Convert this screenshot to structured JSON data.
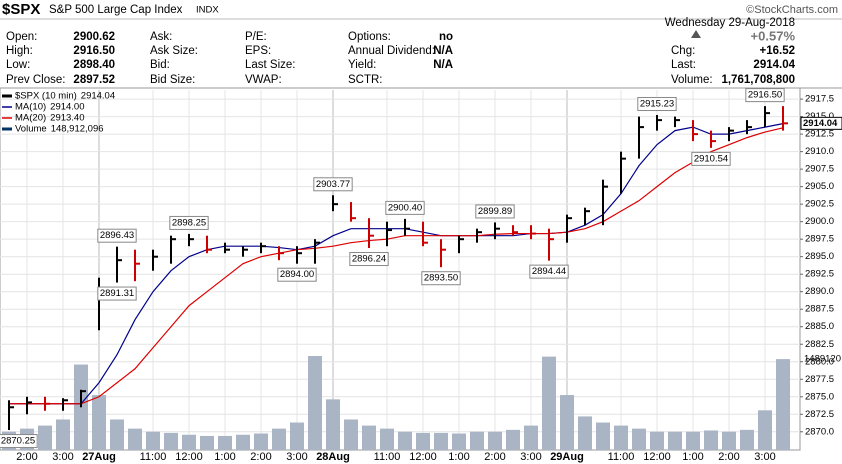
{
  "header": {
    "symbol": "$SPX",
    "name": "S&P 500 Large Cap Index",
    "exchange": "INDX",
    "watermark": "©StockCharts.com",
    "columns": [
      [
        {
          "label": "Open:",
          "value": "2900.62"
        },
        {
          "label": "High:",
          "value": "2916.50"
        },
        {
          "label": "Low:",
          "value": "2898.40"
        },
        {
          "label": "Prev Close:",
          "value": "2897.52"
        }
      ],
      [
        {
          "label": "Ask:"
        },
        {
          "label": "Ask Size:"
        },
        {
          "label": "Bid:"
        },
        {
          "label": "Bid Size:"
        }
      ],
      [
        {
          "label": "P/E:"
        },
        {
          "label": "EPS:"
        },
        {
          "label": "Last Size:"
        },
        {
          "label": "VWAP:"
        }
      ],
      [
        {
          "label": "Options:",
          "value": "no"
        },
        {
          "label": "Annual Dividend:",
          "value": "N/A"
        },
        {
          "label": "Yield:",
          "value": "N/A"
        },
        {
          "label": "SCTR:"
        }
      ]
    ],
    "date": "Wednesday 29-Aug-2018",
    "change_pct": "+0.57%",
    "stats": [
      {
        "label": "Chg:",
        "value": "+16.52"
      },
      {
        "label": "Last:",
        "value": "2914.04"
      },
      {
        "label": "Volume:",
        "value": "1,761,708,800"
      }
    ]
  },
  "chart_data": {
    "type": "hlc",
    "categories": [
      null,
      "2:00",
      null,
      "3:00",
      null,
      "27Aug",
      null,
      null,
      "11:00",
      null,
      "12:00",
      null,
      "1:00",
      null,
      "2:00",
      null,
      "3:00",
      null,
      "28Aug",
      null,
      null,
      "11:00",
      null,
      "12:00",
      null,
      "1:00",
      null,
      "2:00",
      null,
      "3:00",
      null,
      "29Aug",
      null,
      null,
      "11:00",
      null,
      "12:00",
      null,
      "1:00",
      null,
      "2:00",
      null,
      "3:00",
      null
    ],
    "price": {
      "name": "$SPX (10 min)",
      "legend_value": "2914.04",
      "up_color": "#000000",
      "down_color": "#cc0000",
      "high": [
        2874.5,
        2875,
        2875,
        2874.8,
        2876,
        2892,
        2896.43,
        2896,
        2896,
        2898,
        2898.25,
        2898,
        2897,
        2896.5,
        2897,
        2896.5,
        2896.5,
        2897.5,
        2903.77,
        2902.8,
        2900.5,
        2900,
        2900.4,
        2900,
        2897.5,
        2898,
        2899,
        2899.89,
        2899.5,
        2899.5,
        2899,
        2901,
        2902,
        2906,
        2910,
        2915,
        2915.23,
        2915,
        2914.5,
        2913,
        2913.5,
        2914.5,
        2916.5,
        2916.5
      ],
      "low": [
        2870.25,
        2872.5,
        2873,
        2873,
        2873.5,
        2884.5,
        2891.31,
        2891.5,
        2893,
        2894,
        2896.5,
        2895.5,
        2895.5,
        2895,
        2895.5,
        2894.5,
        2894,
        2894,
        2901.5,
        2900,
        2896.24,
        2896.5,
        2898,
        2896.5,
        2893.5,
        2895.5,
        2897,
        2897.5,
        2898,
        2897.5,
        2894.44,
        2897,
        2899.5,
        2899.5,
        2904,
        2909,
        2913,
        2913.5,
        2911.5,
        2910.54,
        2911.5,
        2912.5,
        2913.5,
        2913
      ],
      "close": [
        2873.5,
        2874.2,
        2874,
        2874.5,
        2875.8,
        2890,
        2894.5,
        2894,
        2895,
        2897.5,
        2897.5,
        2896,
        2896,
        2896,
        2896.5,
        2895.5,
        2895.5,
        2897,
        2902.5,
        2900.5,
        2898,
        2898.8,
        2899,
        2897,
        2896,
        2897.5,
        2898.5,
        2899,
        2898.5,
        2898.3,
        2897.5,
        2900.5,
        2901.5,
        2905,
        2909,
        2913.5,
        2914.5,
        2914.5,
        2912.5,
        2911.5,
        2913,
        2913.5,
        2915.5,
        2914.04
      ],
      "high_labels": [
        null,
        null,
        null,
        null,
        null,
        null,
        "2896.43",
        null,
        null,
        null,
        "2898.25",
        null,
        null,
        null,
        null,
        null,
        null,
        null,
        "2903.77",
        null,
        null,
        null,
        "2900.40",
        null,
        null,
        null,
        null,
        "2899.89",
        null,
        null,
        null,
        null,
        null,
        null,
        null,
        null,
        "2915.23",
        null,
        null,
        null,
        null,
        null,
        "2916.50",
        null
      ],
      "low_labels": [
        "2870.25",
        null,
        null,
        null,
        null,
        null,
        "2891.31",
        null,
        null,
        null,
        null,
        null,
        null,
        null,
        null,
        null,
        "2894.00",
        null,
        null,
        null,
        "2896.24",
        null,
        null,
        null,
        "2893.50",
        null,
        null,
        null,
        null,
        null,
        "2894.44",
        null,
        null,
        null,
        null,
        null,
        null,
        null,
        null,
        "2910.54",
        null,
        null,
        null,
        null
      ]
    },
    "series": [
      {
        "name": "MA(10)",
        "legend_value": "2914.00",
        "color": "#00008b",
        "values": [
          2874,
          2874,
          2874,
          2874,
          2874,
          2877,
          2881,
          2886,
          2890,
          2893,
          2895,
          2896,
          2896.5,
          2896.5,
          2896.5,
          2896.3,
          2896,
          2896.5,
          2898,
          2899,
          2899,
          2899,
          2899,
          2898.5,
          2898,
          2898,
          2898,
          2898,
          2898,
          2898.3,
          2898.3,
          2898.5,
          2899.5,
          2901,
          2904,
          2908,
          2911,
          2913,
          2913.5,
          2912.5,
          2912.5,
          2913,
          2913.5,
          2914
        ]
      },
      {
        "name": "MA(20)",
        "legend_value": "2913.40",
        "color": "#dd0000",
        "values": [
          2874,
          2874,
          2874,
          2874,
          2874,
          2875,
          2877,
          2879,
          2882,
          2885,
          2888,
          2890,
          2892,
          2894,
          2895,
          2895.5,
          2896,
          2896.2,
          2896.5,
          2897,
          2897.3,
          2897.5,
          2898,
          2898,
          2898,
          2898,
          2898,
          2898.2,
          2898.3,
          2898.3,
          2898.3,
          2898.5,
          2899,
          2900,
          2901.5,
          2903,
          2905,
          2907,
          2908.5,
          2910,
          2911,
          2912,
          2912.8,
          2913.4
        ]
      }
    ],
    "volume": {
      "name": "Volume",
      "legend_value": "148,912,096",
      "color": "#a9b4c4",
      "values": [
        300000,
        350000,
        400000,
        500000,
        1400000,
        900000,
        500000,
        350000,
        300000,
        280000,
        250000,
        230000,
        230000,
        250000,
        270000,
        350000,
        450000,
        1540000,
        830000,
        500000,
        400000,
        350000,
        300000,
        280000,
        280000,
        270000,
        300000,
        300000,
        330000,
        400000,
        1530000,
        900000,
        550000,
        450000,
        400000,
        350000,
        300000,
        300000,
        300000,
        320000,
        300000,
        330000,
        650000,
        1489120
      ]
    },
    "ylim": [
      2867.4,
      2918.8
    ],
    "yticks": [
      {
        "value": 2870,
        "label": "2870.0"
      },
      {
        "value": 2872.5,
        "label": "2872.5"
      },
      {
        "value": 2875,
        "label": "2875.0"
      },
      {
        "value": 2877.5,
        "label": "2877.5"
      },
      {
        "value": 2880,
        "label": "2880.0"
      },
      {
        "value": 2882.5,
        "label": "2882.5"
      },
      {
        "value": 2885,
        "label": "2885.0"
      },
      {
        "value": 2887.5,
        "label": "2887.5"
      },
      {
        "value": 2890,
        "label": "2890.0"
      },
      {
        "value": 2892.5,
        "label": "2892.5"
      },
      {
        "value": 2895,
        "label": "2895.0"
      },
      {
        "value": 2897.5,
        "label": "2897.5"
      },
      {
        "value": 2900,
        "label": "2900.0"
      },
      {
        "value": 2902.5,
        "label": "2902.5"
      },
      {
        "value": 2905,
        "label": "2905.0"
      },
      {
        "value": 2907.5,
        "label": "2907.5"
      },
      {
        "value": 2910,
        "label": "2910.0"
      },
      {
        "value": 2912.5,
        "label": "2912.5"
      },
      {
        "value": 2915,
        "label": "2915.0"
      },
      {
        "value": 2917.5,
        "label": "2917.5"
      }
    ],
    "grid": true
  }
}
